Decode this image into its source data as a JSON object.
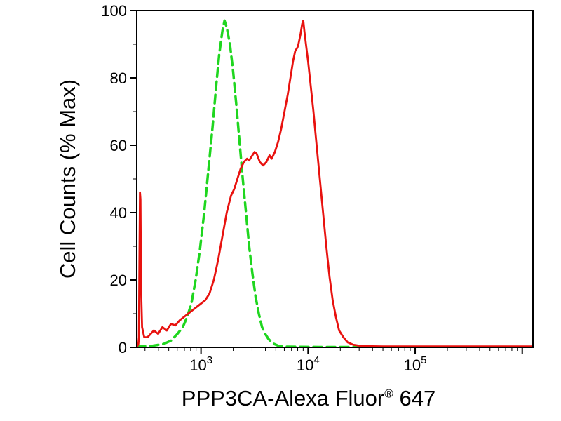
{
  "chart_data": {
    "type": "line",
    "chart_kind": "flow-cytometry-histogram",
    "ylabel": "Cell Counts (% Max)",
    "xlabel_main": "PPP3CA-Alexa Fluor",
    "xlabel_reg": "®",
    "xlabel_suffix": "647",
    "x_scale": "log10",
    "xlog_range": [
      2.4,
      6.1
    ],
    "ylim": [
      0,
      100
    ],
    "x_tick_exponents": [
      3,
      4,
      5
    ],
    "y_ticks": [
      0,
      20,
      40,
      60,
      80,
      100
    ],
    "y_minor_step": 10,
    "grid": "off",
    "legend": "none",
    "frame_color": "#000000",
    "background_color": "#ffffff",
    "series": [
      {
        "name": "green-dashed-control",
        "color": "#1FD61F",
        "dash": [
          12,
          7
        ],
        "width": 3.5,
        "points": [
          [
            2.4,
            0.2
          ],
          [
            2.55,
            0.5
          ],
          [
            2.65,
            1
          ],
          [
            2.72,
            2
          ],
          [
            2.78,
            4
          ],
          [
            2.83,
            6
          ],
          [
            2.87,
            9
          ],
          [
            2.91,
            13
          ],
          [
            2.95,
            20
          ],
          [
            2.99,
            29
          ],
          [
            3.03,
            40
          ],
          [
            3.07,
            53
          ],
          [
            3.11,
            66
          ],
          [
            3.14,
            77
          ],
          [
            3.17,
            87
          ],
          [
            3.2,
            94
          ],
          [
            3.22,
            97
          ],
          [
            3.24,
            95
          ],
          [
            3.27,
            90
          ],
          [
            3.3,
            82
          ],
          [
            3.33,
            72
          ],
          [
            3.36,
            61
          ],
          [
            3.39,
            50
          ],
          [
            3.42,
            40
          ],
          [
            3.45,
            30
          ],
          [
            3.48,
            22
          ],
          [
            3.51,
            15
          ],
          [
            3.54,
            10
          ],
          [
            3.57,
            6
          ],
          [
            3.6,
            4
          ],
          [
            3.63,
            2.5
          ],
          [
            3.67,
            1.2
          ],
          [
            3.72,
            0.5
          ],
          [
            3.8,
            0.2
          ],
          [
            4.1,
            0.1
          ],
          [
            6.1,
            0.1
          ]
        ]
      },
      {
        "name": "red-solid-ppp3ca",
        "color": "#E8120F",
        "dash": null,
        "width": 2.8,
        "points": [
          [
            2.4,
            0
          ],
          [
            2.415,
            1
          ],
          [
            2.42,
            3
          ],
          [
            2.425,
            25
          ],
          [
            2.43,
            46
          ],
          [
            2.435,
            44
          ],
          [
            2.44,
            18
          ],
          [
            2.45,
            6
          ],
          [
            2.47,
            3
          ],
          [
            2.5,
            3
          ],
          [
            2.53,
            4
          ],
          [
            2.56,
            5
          ],
          [
            2.6,
            4
          ],
          [
            2.64,
            6
          ],
          [
            2.68,
            5
          ],
          [
            2.72,
            7
          ],
          [
            2.76,
            6.5
          ],
          [
            2.8,
            8
          ],
          [
            2.84,
            9
          ],
          [
            2.88,
            10
          ],
          [
            2.92,
            11
          ],
          [
            2.96,
            12
          ],
          [
            3.0,
            13
          ],
          [
            3.04,
            14
          ],
          [
            3.08,
            16
          ],
          [
            3.12,
            20
          ],
          [
            3.16,
            26
          ],
          [
            3.2,
            33
          ],
          [
            3.24,
            40
          ],
          [
            3.28,
            45
          ],
          [
            3.31,
            47
          ],
          [
            3.34,
            50
          ],
          [
            3.37,
            53
          ],
          [
            3.4,
            55
          ],
          [
            3.43,
            56
          ],
          [
            3.45,
            55.5
          ],
          [
            3.47,
            56.5
          ],
          [
            3.5,
            58
          ],
          [
            3.52,
            57.5
          ],
          [
            3.55,
            55
          ],
          [
            3.58,
            54
          ],
          [
            3.61,
            55
          ],
          [
            3.64,
            57
          ],
          [
            3.66,
            56
          ],
          [
            3.69,
            58
          ],
          [
            3.72,
            61
          ],
          [
            3.75,
            65
          ],
          [
            3.78,
            70
          ],
          [
            3.81,
            75
          ],
          [
            3.84,
            81
          ],
          [
            3.86,
            85
          ],
          [
            3.88,
            88
          ],
          [
            3.9,
            89
          ],
          [
            3.91,
            90
          ],
          [
            3.93,
            93
          ],
          [
            3.945,
            96
          ],
          [
            3.955,
            97
          ],
          [
            3.965,
            94
          ],
          [
            3.98,
            90
          ],
          [
            4.0,
            85
          ],
          [
            4.02,
            79
          ],
          [
            4.05,
            70
          ],
          [
            4.08,
            60
          ],
          [
            4.11,
            50
          ],
          [
            4.14,
            40
          ],
          [
            4.17,
            30
          ],
          [
            4.2,
            21
          ],
          [
            4.23,
            14
          ],
          [
            4.26,
            9
          ],
          [
            4.29,
            5
          ],
          [
            4.33,
            3
          ],
          [
            4.37,
            1.5
          ],
          [
            4.42,
            0.8
          ],
          [
            4.5,
            0.4
          ],
          [
            4.7,
            0.3
          ],
          [
            5.2,
            0.3
          ],
          [
            5.7,
            0.3
          ],
          [
            6.1,
            0.3
          ]
        ]
      }
    ]
  }
}
